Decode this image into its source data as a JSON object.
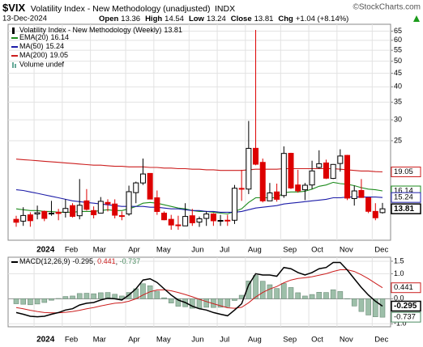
{
  "header": {
    "symbol": "$VIX",
    "name": "Volatility Index - New Methodology (unadjusted)",
    "exchange": "INDX",
    "copyright": "©StockCharts.com",
    "date": "13-Dec-2024",
    "quote_labels": [
      "Open",
      "High",
      "Low",
      "Close",
      "Chg"
    ],
    "change": "+1.04 (+8.14%)"
  },
  "chart_data": [
    {
      "type": "candlestick",
      "title": "Volatility Index - New Methodology (Weekly)",
      "log": true,
      "grid": true,
      "up_color": "#000000",
      "down_color": "#dd0000",
      "categories": [
        null,
        null,
        null,
        "2024",
        null,
        null,
        null,
        "Feb",
        null,
        null,
        null,
        "Mar",
        null,
        null,
        null,
        null,
        "Apr",
        null,
        null,
        null,
        "May",
        null,
        null,
        null,
        null,
        "Jun",
        null,
        null,
        null,
        "Jul",
        null,
        null,
        null,
        "Aug",
        null,
        null,
        null,
        null,
        "Sep",
        null,
        null,
        null,
        "Oct",
        null,
        null,
        null,
        "Nov",
        null,
        null,
        null,
        null,
        "Dec",
        null
      ],
      "open": [
        12.6,
        12.4,
        13.1,
        13.2,
        13.5,
        13.2,
        13.4,
        13.4,
        14.2,
        13.0,
        14.8,
        13.6,
        13.3,
        14.6,
        14.4,
        13.0,
        13.2,
        15.9,
        17.3,
        18.8,
        15.2,
        13.3,
        12.6,
        12.0,
        11.9,
        13.0,
        12.3,
        12.7,
        13.2,
        12.4,
        12.5,
        12.5,
        16.5,
        16.4,
        23.4,
        20.7,
        14.8,
        16.0,
        15.5,
        22.4,
        17.0,
        16.3,
        17.0,
        19.8,
        20.6,
        18.0,
        20.5,
        22.0,
        15.1,
        16.2,
        15.2,
        13.5,
        13.36
      ],
      "high": [
        13.0,
        14.0,
        13.4,
        14.2,
        13.6,
        14.8,
        13.8,
        15.0,
        14.5,
        17.9,
        16.4,
        14.1,
        15.3,
        15.0,
        15.0,
        13.5,
        16.9,
        17.5,
        21.4,
        18.8,
        16.2,
        13.5,
        13.1,
        13.0,
        14.5,
        13.8,
        12.9,
        13.5,
        13.3,
        13.1,
        13.1,
        17.0,
        19.4,
        29.7,
        65.7,
        21.4,
        17.3,
        17.2,
        23.8,
        22.5,
        19.4,
        17.3,
        21.0,
        23.0,
        21.2,
        20.4,
        23.2,
        22.1,
        16.9,
        17.9,
        15.3,
        14.5,
        14.54
      ],
      "low": [
        11.81,
        11.9,
        11.81,
        12.6,
        12.4,
        13.0,
        12.5,
        12.8,
        12.8,
        12.6,
        13.6,
        12.7,
        13.3,
        13.5,
        12.7,
        12.5,
        13.0,
        14.5,
        17.0,
        15.0,
        13.1,
        12.5,
        11.5,
        11.5,
        11.9,
        11.9,
        11.8,
        11.9,
        11.9,
        11.9,
        11.9,
        12.1,
        14.8,
        15.7,
        20.2,
        14.6,
        14.8,
        14.7,
        15.2,
        16.4,
        15.9,
        14.9,
        16.4,
        19.6,
        17.9,
        17.9,
        19.1,
        14.9,
        14.2,
        15.2,
        13.3,
        12.5,
        13.24
      ],
      "close": [
        12.28,
        13.03,
        12.45,
        13.35,
        12.7,
        13.3,
        13.26,
        13.85,
        12.93,
        14.24,
        13.75,
        13.11,
        14.74,
        14.41,
        13.06,
        13.01,
        16.03,
        17.31,
        18.71,
        15.03,
        13.49,
        12.55,
        11.99,
        11.93,
        12.92,
        12.22,
        12.66,
        13.2,
        12.44,
        12.48,
        12.46,
        16.52,
        16.39,
        23.39,
        20.37,
        14.8,
        15.86,
        15.0,
        22.38,
        16.56,
        16.15,
        16.96,
        19.21,
        20.46,
        18.03,
        20.33,
        21.88,
        15.16,
        16.14,
        15.24,
        13.51,
        12.77,
        13.81
      ],
      "series": [
        {
          "name": "EMA(20)",
          "color": "#1e8c1e",
          "values": [
            13.8,
            13.7,
            13.6,
            13.6,
            13.5,
            13.5,
            13.4,
            13.4,
            13.4,
            13.5,
            13.5,
            13.5,
            13.6,
            13.7,
            13.6,
            13.6,
            13.8,
            14.1,
            14.5,
            14.6,
            14.5,
            14.3,
            14.1,
            13.9,
            13.8,
            13.6,
            13.5,
            13.5,
            13.4,
            13.3,
            13.2,
            13.5,
            13.8,
            14.6,
            15.2,
            15.2,
            15.2,
            15.2,
            15.9,
            16.0,
            16.0,
            16.1,
            16.4,
            16.8,
            17.0,
            17.4,
            17.2,
            17.1,
            16.9,
            16.6,
            16.4,
            16.3,
            16.14
          ]
        },
        {
          "name": "MA(50)",
          "color": "#1c1ca8",
          "values": [
            16.3,
            16.2,
            16.0,
            15.8,
            15.6,
            15.4,
            15.2,
            15.0,
            14.8,
            14.7,
            14.6,
            14.5,
            14.4,
            14.3,
            14.2,
            14.1,
            14.1,
            14.1,
            14.1,
            14.0,
            14.0,
            13.9,
            13.8,
            13.8,
            13.7,
            13.6,
            13.6,
            13.5,
            13.5,
            13.4,
            13.4,
            13.4,
            13.5,
            13.7,
            13.9,
            14.0,
            14.1,
            14.2,
            14.4,
            14.5,
            14.6,
            14.7,
            14.8,
            14.9,
            15.0,
            15.2,
            15.2,
            15.3,
            15.3,
            15.3,
            15.3,
            15.3,
            15.24
          ]
        },
        {
          "name": "MA(200)",
          "color": "#cc1e1e",
          "values": [
            21.3,
            21.2,
            21.1,
            21.0,
            20.9,
            20.8,
            20.7,
            20.6,
            20.5,
            20.4,
            20.3,
            20.2,
            20.2,
            20.1,
            20.0,
            20.0,
            19.9,
            19.9,
            19.9,
            19.8,
            19.8,
            19.7,
            19.7,
            19.6,
            19.6,
            19.5,
            19.5,
            19.4,
            19.4,
            19.3,
            19.3,
            19.3,
            19.3,
            19.4,
            19.5,
            19.5,
            19.5,
            19.5,
            19.6,
            19.6,
            19.6,
            19.6,
            19.6,
            19.6,
            19.6,
            19.6,
            19.5,
            19.4,
            19.3,
            19.2,
            19.2,
            19.1,
            19.05
          ]
        }
      ],
      "volume_label": "Volume undef",
      "ylim": [
        10.5,
        69
      ],
      "yticks": [
        25,
        30,
        35,
        40,
        45,
        50,
        55,
        60,
        65
      ]
    },
    {
      "type": "macd",
      "title": "MACD(12,26,9)",
      "grid": true,
      "macd_color": "#000000",
      "signal_color": "#cc1e1e",
      "histogram_color": "#9dbfa9",
      "macd": [
        -0.55,
        -0.62,
        -0.7,
        -0.72,
        -0.7,
        -0.62,
        -0.55,
        -0.45,
        -0.4,
        -0.25,
        -0.18,
        -0.15,
        -0.05,
        0.02,
        0.0,
        -0.05,
        0.15,
        0.4,
        0.75,
        0.8,
        0.65,
        0.4,
        0.15,
        -0.05,
        -0.15,
        -0.3,
        -0.4,
        -0.45,
        -0.55,
        -0.62,
        -0.68,
        -0.45,
        -0.2,
        0.55,
        1.0,
        0.95,
        0.95,
        0.9,
        1.25,
        1.2,
        1.05,
        0.95,
        1.05,
        1.2,
        1.25,
        1.45,
        1.45,
        1.15,
        0.8,
        0.45,
        0.15,
        -0.1,
        -0.295
      ],
      "signal": [
        -0.35,
        -0.4,
        -0.46,
        -0.51,
        -0.55,
        -0.56,
        -0.56,
        -0.54,
        -0.51,
        -0.46,
        -0.4,
        -0.35,
        -0.29,
        -0.23,
        -0.18,
        -0.16,
        -0.1,
        0.0,
        0.15,
        0.28,
        0.35,
        0.36,
        0.32,
        0.25,
        0.17,
        0.08,
        -0.02,
        -0.11,
        -0.2,
        -0.28,
        -0.36,
        -0.38,
        -0.34,
        -0.16,
        0.07,
        0.25,
        0.39,
        0.49,
        0.64,
        0.75,
        0.81,
        0.84,
        0.88,
        0.94,
        1.0,
        1.09,
        1.16,
        1.16,
        1.09,
        0.96,
        0.8,
        0.62,
        0.441
      ],
      "histogram": [
        -0.2,
        -0.22,
        -0.24,
        -0.21,
        -0.15,
        -0.06,
        0.01,
        0.09,
        0.11,
        0.21,
        0.22,
        0.2,
        0.24,
        0.25,
        0.18,
        0.11,
        0.25,
        0.4,
        0.6,
        0.52,
        0.3,
        0.04,
        -0.17,
        -0.3,
        -0.32,
        -0.38,
        -0.38,
        -0.34,
        -0.35,
        -0.34,
        -0.32,
        -0.07,
        0.14,
        0.71,
        0.93,
        0.7,
        0.56,
        0.41,
        0.61,
        0.45,
        0.24,
        0.11,
        0.17,
        0.26,
        0.25,
        0.36,
        0.29,
        -0.01,
        -0.29,
        -0.51,
        -0.65,
        -0.72,
        -0.737
      ],
      "ylim": [
        -1.12,
        1.66
      ],
      "yticks": [
        {
          "value": -1,
          "label": "-1.0"
        },
        {
          "value": 0,
          "label": "0.0"
        },
        {
          "value": 1,
          "label": "1.0"
        },
        1.5
      ]
    }
  ]
}
